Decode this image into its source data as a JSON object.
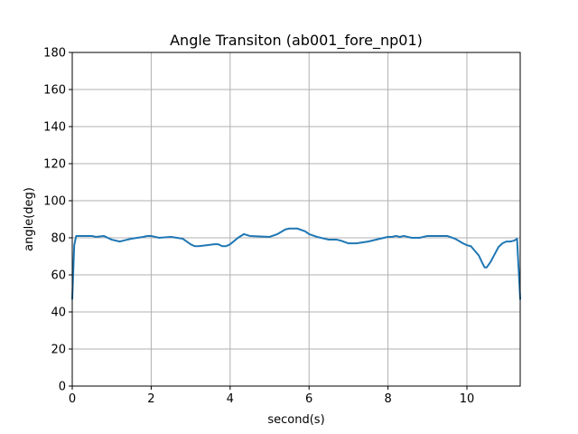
{
  "chart_data": {
    "type": "line",
    "title": "Angle Transiton (ab001_fore_np01)",
    "xlabel": "second(s)",
    "ylabel": "angle(deg)",
    "xlim": [
      0,
      11.35
    ],
    "ylim": [
      0,
      180
    ],
    "xticks": [
      0,
      2,
      4,
      6,
      8,
      10
    ],
    "yticks": [
      0,
      20,
      40,
      60,
      80,
      100,
      120,
      140,
      160,
      180
    ],
    "grid": true,
    "series_color": "#1f77b4",
    "series": [
      {
        "x": [
          0,
          0.05,
          0.1,
          0.3,
          0.5,
          0.6,
          0.8,
          1.0,
          1.2,
          1.3,
          1.5,
          1.8,
          1.9,
          2.0,
          2.2,
          2.5,
          2.8,
          3.0,
          3.1,
          3.2,
          3.4,
          3.6,
          3.7,
          3.8,
          3.9,
          4.0,
          4.2,
          4.35,
          4.5,
          5.0,
          5.2,
          5.4,
          5.5,
          5.7,
          5.9,
          6.0,
          6.2,
          6.5,
          6.7,
          6.8,
          7.0,
          7.2,
          7.5,
          7.8,
          8.0,
          8.1,
          8.2,
          8.3,
          8.4,
          8.6,
          8.8,
          9.0,
          9.3,
          9.5,
          9.7,
          9.9,
          10.0,
          10.1,
          10.2,
          10.3,
          10.4,
          10.45,
          10.5,
          10.6,
          10.7,
          10.8,
          10.9,
          11.0,
          11.1,
          11.2,
          11.27,
          11.35
        ],
        "y": [
          47,
          76,
          81,
          81,
          81,
          80.5,
          81,
          79,
          78,
          78.5,
          79.5,
          80.5,
          81,
          81,
          80,
          80.5,
          79.5,
          76.5,
          75.5,
          75.5,
          76,
          76.5,
          76.5,
          75.5,
          75.5,
          76.5,
          80,
          82,
          81,
          80.5,
          82,
          84.5,
          85,
          85,
          83.5,
          82,
          80.5,
          79,
          79,
          78.5,
          77,
          77,
          78,
          79.5,
          80.5,
          80.5,
          81,
          80.5,
          81,
          80,
          80,
          81,
          81,
          81,
          79.5,
          77,
          76,
          75.5,
          73,
          70.5,
          66,
          64,
          64,
          67,
          71,
          75,
          77,
          78,
          78,
          78.5,
          79.5,
          47
        ]
      }
    ]
  }
}
